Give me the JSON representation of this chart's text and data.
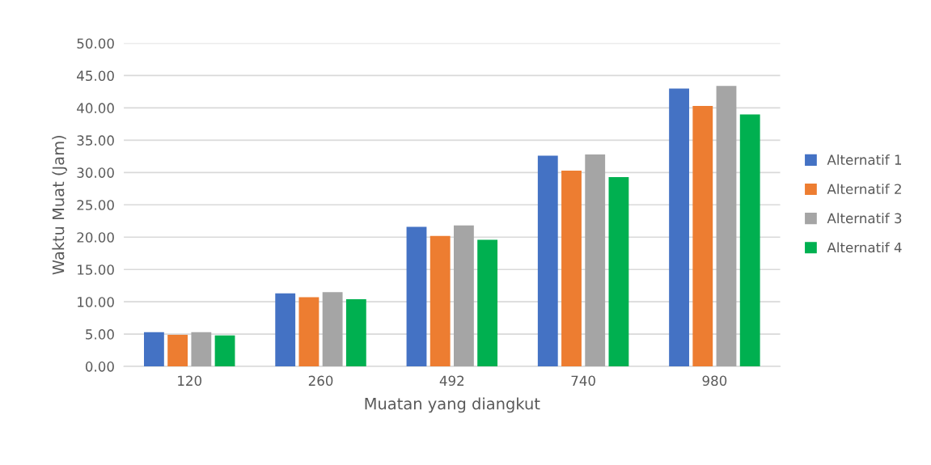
{
  "chart_data": {
    "type": "bar",
    "xlabel": "Muatan yang diangkut",
    "ylabel": "Waktu Muat (Jam)",
    "categories": [
      "120",
      "260",
      "492",
      "740",
      "980"
    ],
    "series": [
      {
        "name": "Alternatif 1",
        "color": "#4472c4",
        "values": [
          5.3,
          11.3,
          21.6,
          32.6,
          43.0
        ]
      },
      {
        "name": "Alternatif 2",
        "color": "#ed7d31",
        "values": [
          4.9,
          10.7,
          20.2,
          30.3,
          40.3
        ]
      },
      {
        "name": "Alternatif 3",
        "color": "#a5a5a5",
        "values": [
          5.3,
          11.5,
          21.8,
          32.8,
          43.4
        ]
      },
      {
        "name": "Alternatif 4",
        "color": "#00b050",
        "values": [
          4.8,
          10.4,
          19.6,
          29.3,
          39.0
        ]
      }
    ],
    "ylim": [
      0,
      50
    ],
    "yticks": [
      {
        "value": 0,
        "label": "0.00"
      },
      {
        "value": 5,
        "label": "5.00"
      },
      {
        "value": 10,
        "label": "10.00"
      },
      {
        "value": 15,
        "label": "15.00"
      },
      {
        "value": 20,
        "label": "20.00"
      },
      {
        "value": 25,
        "label": "25.00"
      },
      {
        "value": 30,
        "label": "30.00"
      },
      {
        "value": 35,
        "label": "35.00"
      },
      {
        "value": 40,
        "label": "40.00"
      },
      {
        "value": 45,
        "label": "45.00"
      },
      {
        "value": 50,
        "label": "50.00"
      }
    ],
    "grid": "y",
    "legend": "right"
  }
}
